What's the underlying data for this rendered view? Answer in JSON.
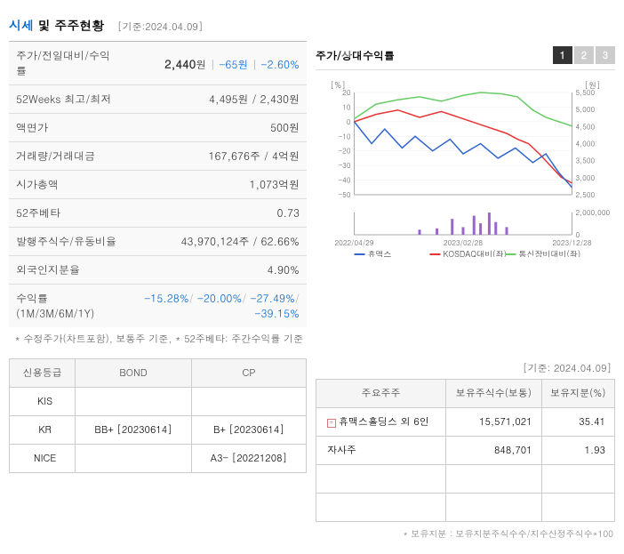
{
  "header": {
    "title_highlight": "시세",
    "title_rest": " 및 주주현황",
    "date_ref": "[기준:2024.04.09]"
  },
  "price_table": {
    "rows": [
      {
        "label": "주가/전일대비/수익률",
        "val_bold": "2,440",
        "unit": "원",
        "extra1": "-65원",
        "extra2": "-2.60%"
      },
      {
        "label": "52Weeks 최고/최저",
        "val": "4,495원 / 2,430원"
      },
      {
        "label": "액면가",
        "val": "500원"
      },
      {
        "label": "거래량/거래대금",
        "val": "167,676주 / 4억원"
      },
      {
        "label": "시가총액",
        "val": "1,073억원"
      },
      {
        "label": "52주베타",
        "val": "0.73"
      },
      {
        "label": "발행주식수/유동비율",
        "val": "43,970,124주 / 62.66%"
      },
      {
        "label": "외국인지분율",
        "val": "4.90%"
      }
    ],
    "return_row": {
      "label": "수익률 (1M/3M/6M/1Y)",
      "v1": "-15.28%",
      "v2": "-20.00%",
      "v3": "-27.49%",
      "v4": "-39.15%"
    },
    "footnote": "* 수정주가(차트포함), 보통주 기준, * 52주베타: 주간수익률 기준"
  },
  "chart": {
    "title": "주가/상대수익률",
    "tabs": [
      "1",
      "2",
      "3"
    ],
    "active_tab": 0,
    "y_left_label": "[%]",
    "y_right_label": "[원]",
    "y_left_ticks": [
      20,
      10,
      0,
      -10,
      -20,
      -30,
      -40,
      -50
    ],
    "y_right_ticks": [
      5500,
      5000,
      4500,
      4000,
      3500,
      3000,
      2500
    ],
    "y_right_ticks2": [
      2000000,
      0
    ],
    "x_ticks": [
      "2022/04/29",
      "2023/02/28",
      "2023/12/28"
    ],
    "series": {
      "blue": {
        "color": "#3366cc",
        "label": "휴맥스",
        "points": [
          [
            0,
            0
          ],
          [
            8,
            -15
          ],
          [
            14,
            -5
          ],
          [
            22,
            -18
          ],
          [
            28,
            -10
          ],
          [
            36,
            -20
          ],
          [
            44,
            -12
          ],
          [
            50,
            -22
          ],
          [
            58,
            -15
          ],
          [
            66,
            -25
          ],
          [
            74,
            -18
          ],
          [
            82,
            -28
          ],
          [
            88,
            -22
          ],
          [
            94,
            -35
          ],
          [
            100,
            -45
          ]
        ]
      },
      "red": {
        "color": "#e63333",
        "label": "KOSDAQ대비(좌)",
        "points": [
          [
            0,
            0
          ],
          [
            10,
            5
          ],
          [
            20,
            8
          ],
          [
            30,
            3
          ],
          [
            40,
            7
          ],
          [
            50,
            2
          ],
          [
            60,
            -3
          ],
          [
            70,
            -8
          ],
          [
            75,
            -12
          ],
          [
            80,
            -15
          ],
          [
            85,
            -22
          ],
          [
            90,
            -30
          ],
          [
            95,
            -38
          ],
          [
            100,
            -42
          ]
        ]
      },
      "green": {
        "color": "#66cc66",
        "label": "통신장비대비(좌)",
        "points": [
          [
            0,
            2
          ],
          [
            10,
            12
          ],
          [
            20,
            15
          ],
          [
            30,
            17
          ],
          [
            40,
            14
          ],
          [
            50,
            18
          ],
          [
            58,
            20
          ],
          [
            68,
            19
          ],
          [
            75,
            17
          ],
          [
            82,
            8
          ],
          [
            88,
            3
          ],
          [
            94,
            0
          ],
          [
            100,
            -3
          ]
        ]
      },
      "volume": {
        "color": "#9966cc",
        "label": "거래량",
        "bars": [
          [
            30,
            8
          ],
          [
            38,
            10
          ],
          [
            45,
            25
          ],
          [
            50,
            12
          ],
          [
            55,
            30
          ],
          [
            58,
            18
          ],
          [
            62,
            35
          ],
          [
            65,
            20
          ],
          [
            70,
            12
          ]
        ]
      }
    }
  },
  "rating": {
    "headers": [
      "신용등급",
      "BOND",
      "CP"
    ],
    "rows": [
      {
        "agency": "KIS",
        "bond": "",
        "cp": ""
      },
      {
        "agency": "KR",
        "bond": "BB+  [20230614]",
        "cp": "B+  [20230614]"
      },
      {
        "agency": "NICE",
        "bond": "",
        "cp": "A3-  [20221208]"
      }
    ]
  },
  "shareholders": {
    "date_ref": "[기준: 2024.04.09]",
    "headers": [
      "주요주주",
      "보유주식수(보통)",
      "보유지분(%)"
    ],
    "rows": [
      {
        "name": "휴맥스홀딩스 외 6인",
        "shares": "15,571,021",
        "pct": "35.41",
        "expandable": true
      },
      {
        "name": "자사주",
        "shares": "848,701",
        "pct": "1.93",
        "expandable": false
      }
    ],
    "footnote": "* 보유지분 : 보유지분주식수수/지수산정주식수*100"
  }
}
